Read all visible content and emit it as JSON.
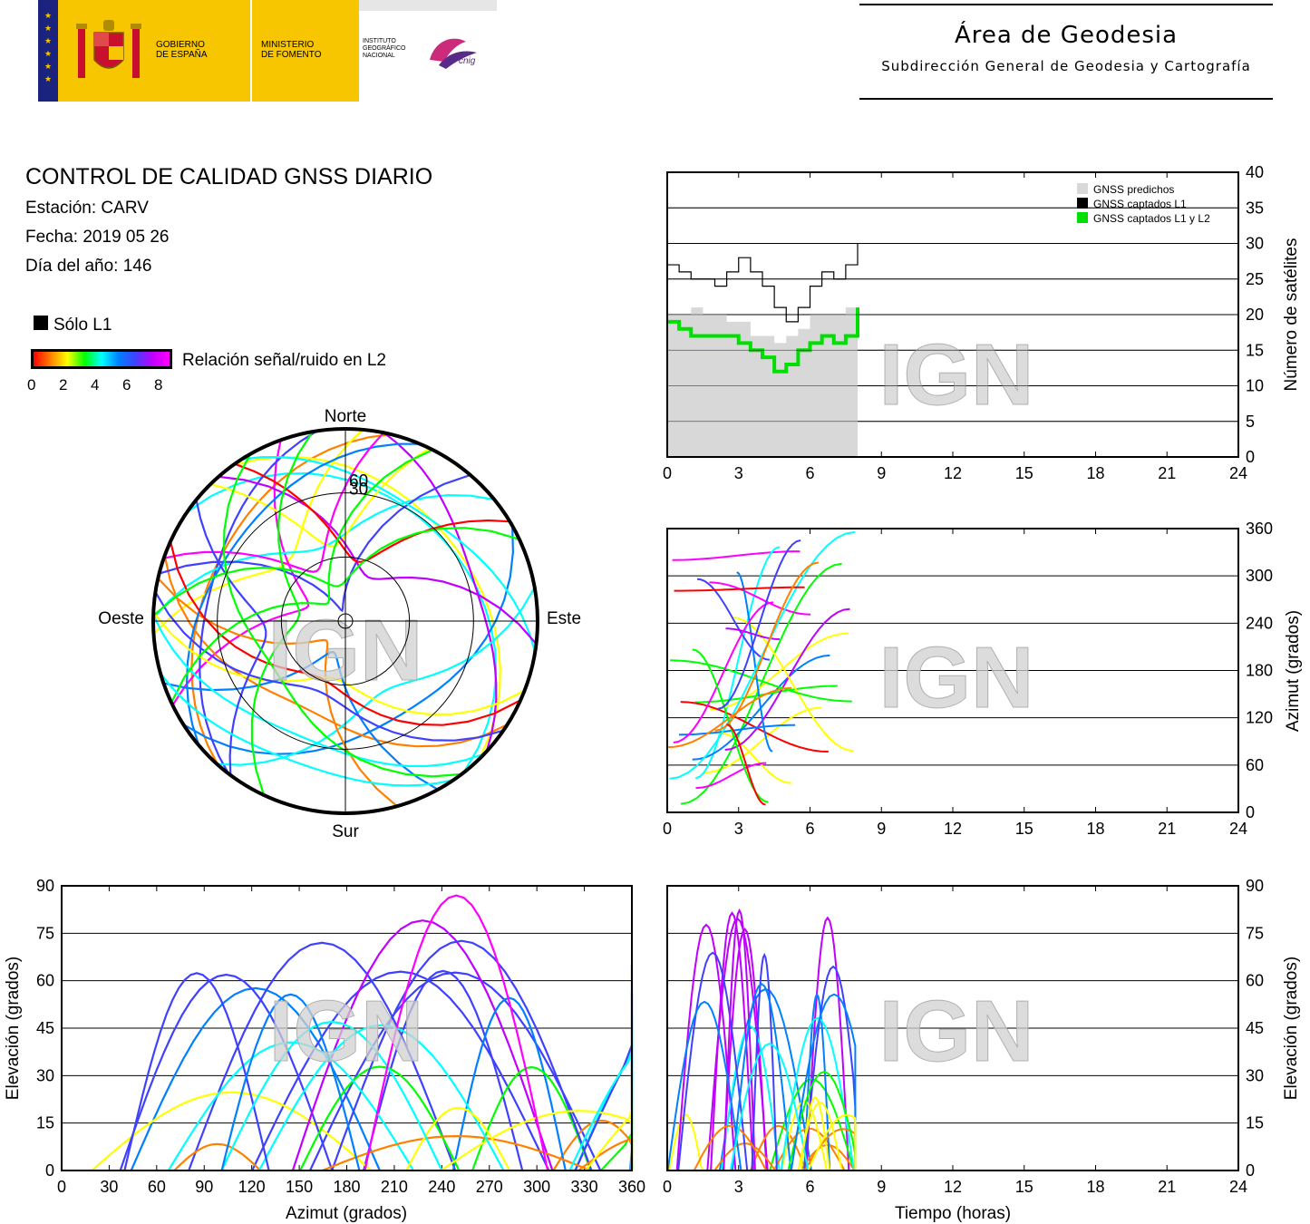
{
  "header": {
    "gov_line1": "GOBIERNO",
    "gov_line2": "DE ESPAÑA",
    "min_line1": "MINISTERIO",
    "min_line2": "DE FOMENTO",
    "inst_line1": "INSTITUTO",
    "inst_line2": "GEOGRÁFICO",
    "inst_line3": "NACIONAL",
    "cnig": "cnig",
    "area_title": "Área de Geodesia",
    "area_subtitle": "Subdirección General de Geodesia y Cartografía",
    "colors": {
      "flag_red": "#c8102e",
      "flag_yellow": "#f7c600",
      "navy": "#1a237e"
    }
  },
  "report": {
    "title": "CONTROL DE CALIDAD GNSS DIARIO",
    "station": "Estación: CARV",
    "date": "Fecha: 2019 05 26",
    "doy": "Día del año: 146"
  },
  "legend": {
    "only_l1": "Sólo L1",
    "snr_label": "Relación señal/ruido en L2",
    "snr_ticks": [
      "0",
      "2",
      "4",
      "6",
      "8"
    ],
    "gradient_colors": [
      "#ff0000",
      "#ff8000",
      "#ffff00",
      "#00ff00",
      "#00ffff",
      "#0080ff",
      "#4040ff",
      "#c000ff",
      "#ff00ff"
    ]
  },
  "watermark": "IGN",
  "chart_data": [
    {
      "id": "sat_count",
      "type": "line",
      "xlim": [
        0,
        24
      ],
      "ylim": [
        0,
        40
      ],
      "x_ticks": [
        "0",
        "3",
        "6",
        "9",
        "12",
        "15",
        "18",
        "21",
        "24"
      ],
      "y_ticks": [
        "0",
        "5",
        "10",
        "15",
        "20",
        "25",
        "30",
        "35",
        "40"
      ],
      "ylabel": "Número de satélites",
      "legend_position": "top-right",
      "series": [
        {
          "name": "GNSS predichos",
          "color": "#d8d8d8",
          "x": [
            0,
            0.5,
            1,
            1.5,
            2,
            2.5,
            3,
            3.5,
            4,
            4.5,
            5,
            5.5,
            6,
            6.5,
            7,
            7.5,
            8
          ],
          "y": [
            20,
            20,
            21,
            20,
            20,
            19,
            19,
            17,
            17,
            16,
            17,
            18,
            20,
            20,
            20,
            21,
            23
          ]
        },
        {
          "name": "GNSS captados L1",
          "color": "#000000",
          "x": [
            0,
            0.5,
            1,
            1.5,
            2,
            2.5,
            3,
            3.5,
            4,
            4.5,
            5,
            5.5,
            6,
            6.5,
            7,
            7.5,
            8
          ],
          "y": [
            27,
            26,
            25,
            25,
            24,
            26,
            28,
            26,
            24,
            21,
            19,
            21,
            24,
            26,
            25,
            27,
            30
          ]
        },
        {
          "name": "GNSS captados L1 y L2",
          "color": "#00e000",
          "x": [
            0,
            0.5,
            1,
            1.5,
            2,
            2.5,
            3,
            3.5,
            4,
            4.5,
            5,
            5.5,
            6,
            6.5,
            7,
            7.5,
            8
          ],
          "y": [
            19,
            18,
            17,
            17,
            17,
            17,
            16,
            15,
            14,
            12,
            13,
            15,
            16,
            17,
            16,
            17,
            21
          ]
        }
      ]
    },
    {
      "id": "azimuth_vs_time",
      "type": "scatter",
      "xlim": [
        0,
        24
      ],
      "ylim": [
        0,
        360
      ],
      "x_ticks": [
        "0",
        "3",
        "6",
        "9",
        "12",
        "15",
        "18",
        "21",
        "24"
      ],
      "y_ticks": [
        "0",
        "60",
        "120",
        "180",
        "240",
        "300",
        "360"
      ],
      "ylabel": "Azimut (grados)"
    },
    {
      "id": "skyplot",
      "type": "scatter",
      "ring_labels": [
        "30",
        "60"
      ],
      "directions": {
        "north": "Norte",
        "south": "Sur",
        "east": "Este",
        "west": "Oeste"
      }
    },
    {
      "id": "elevation_vs_azimuth",
      "type": "scatter",
      "xlim": [
        0,
        360
      ],
      "ylim": [
        0,
        90
      ],
      "x_ticks": [
        "0",
        "30",
        "60",
        "90",
        "120",
        "150",
        "180",
        "210",
        "240",
        "270",
        "300",
        "330",
        "360"
      ],
      "y_ticks": [
        "0",
        "15",
        "30",
        "45",
        "60",
        "75",
        "90"
      ],
      "xlabel": "Azimut (grados)",
      "ylabel": "Elevación (grados)"
    },
    {
      "id": "elevation_vs_time",
      "type": "scatter",
      "xlim": [
        0,
        24
      ],
      "ylim": [
        0,
        90
      ],
      "x_ticks": [
        "0",
        "3",
        "6",
        "9",
        "12",
        "15",
        "18",
        "21",
        "24"
      ],
      "y_ticks": [
        "0",
        "15",
        "30",
        "45",
        "60",
        "75",
        "90"
      ],
      "xlabel": "Tiempo (horas)",
      "ylabel": "Elevación (grados)"
    }
  ]
}
